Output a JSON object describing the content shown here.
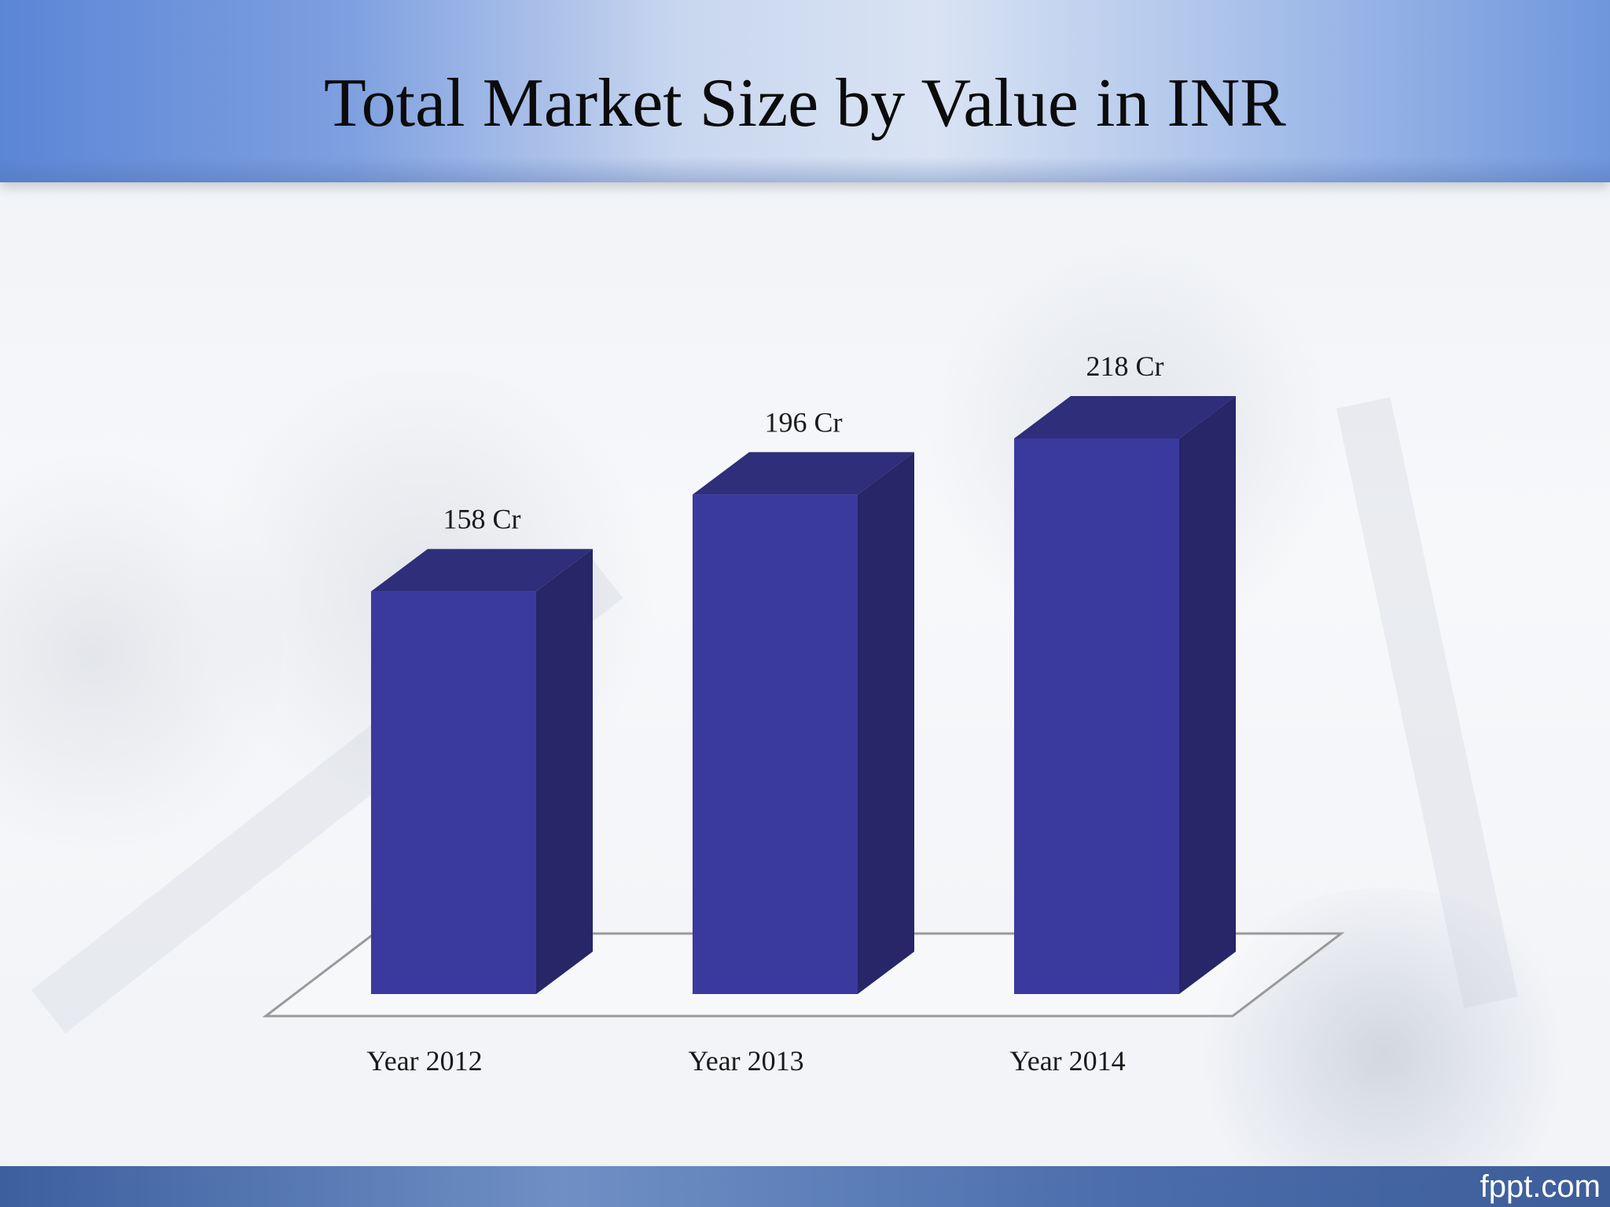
{
  "slide": {
    "title": "Total Market Size by Value in INR",
    "footer_credit": "fppt.com"
  },
  "colors": {
    "bar_front": "#3a3a9e",
    "bar_side": "#262668",
    "bar_top": "#2e2e7a",
    "floor_line": "#9a9a9a"
  },
  "chart_data": {
    "type": "bar",
    "style": "3d-column",
    "title": "Total Market Size by Value in INR",
    "categories": [
      "Year 2012",
      "Year 2013",
      "Year 2014"
    ],
    "values": [
      158,
      196,
      218
    ],
    "data_labels": [
      "158 Cr",
      "196 Cr",
      "218 Cr"
    ],
    "unit": "Cr",
    "xlabel": "",
    "ylabel": "",
    "ylim": [
      0,
      218
    ],
    "grid": false,
    "legend": "none"
  }
}
